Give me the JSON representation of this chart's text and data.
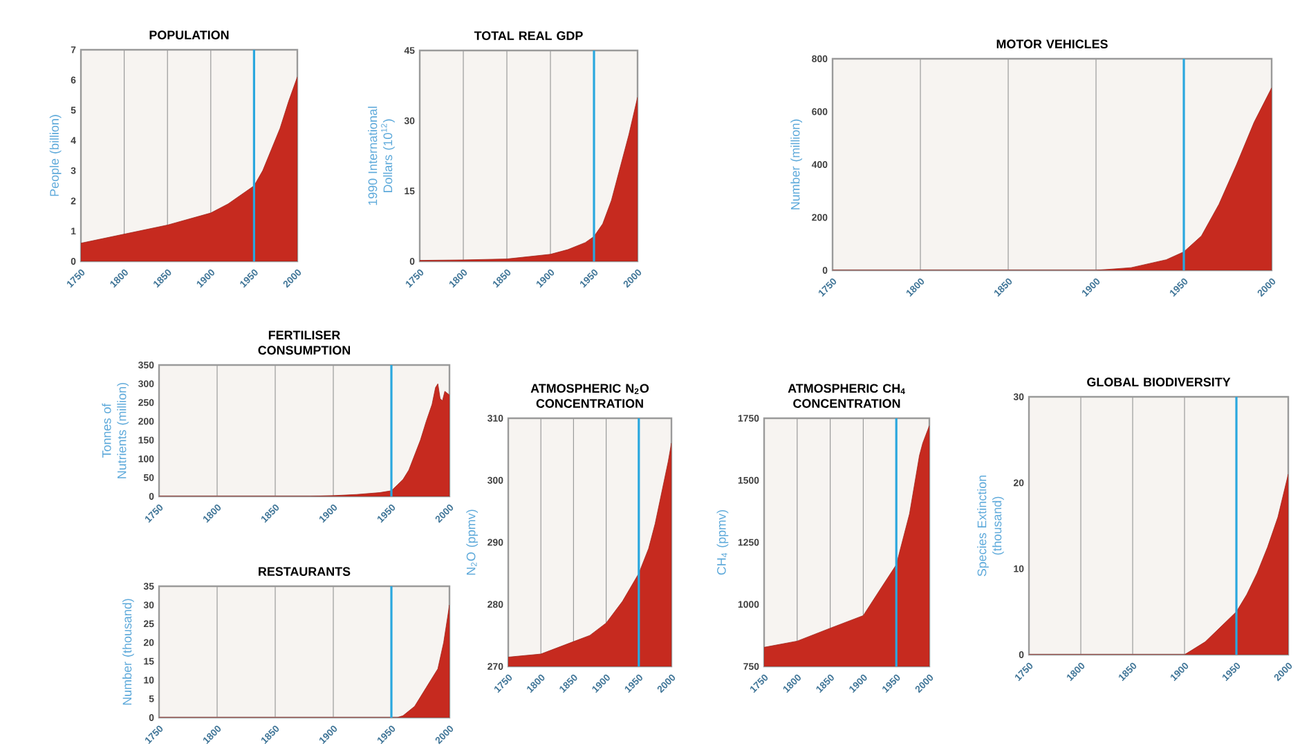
{
  "chart_data": [
    {
      "type": "area",
      "title": "POPULATION",
      "ylabel": "People (billion)",
      "color": "#c62a1f",
      "grid": "x",
      "x": [
        1750,
        1800,
        1850,
        1900,
        1920,
        1940,
        1950,
        1960,
        1970,
        1980,
        1990,
        2000
      ],
      "values": [
        0.6,
        0.9,
        1.2,
        1.6,
        1.9,
        2.3,
        2.5,
        3.0,
        3.7,
        4.4,
        5.3,
        6.1
      ],
      "xlim": [
        1750,
        2000
      ],
      "xticks": [
        1750,
        1800,
        1850,
        1900,
        1950,
        2000
      ],
      "ylim": [
        0,
        7
      ],
      "yticks": [
        0,
        1,
        2,
        3,
        4,
        5,
        6,
        7
      ],
      "ref_lines": [
        {
          "axis": "x",
          "value": 1950,
          "color": "#2aa7de"
        }
      ]
    },
    {
      "type": "area",
      "title": "TOTAL REAL GDP",
      "ylabel": "1990 International Dollars (10$^{12}$)",
      "color": "#c62a1f",
      "grid": "x",
      "x": [
        1750,
        1800,
        1850,
        1900,
        1920,
        1940,
        1950,
        1960,
        1970,
        1980,
        1990,
        2000
      ],
      "values": [
        0.2,
        0.3,
        0.5,
        1.5,
        2.5,
        4,
        5.3,
        8,
        13,
        20,
        27,
        35
      ],
      "xlim": [
        1750,
        2000
      ],
      "xticks": [
        1750,
        1800,
        1850,
        1900,
        1950,
        2000
      ],
      "ylim": [
        0,
        45
      ],
      "yticks": [
        0,
        15,
        30,
        45
      ],
      "ref_lines": [
        {
          "axis": "x",
          "value": 1950,
          "color": "#2aa7de"
        }
      ]
    },
    {
      "type": "area",
      "title": "MOTOR VEHICLES",
      "ylabel": "Number (million)",
      "color": "#c62a1f",
      "grid": "x",
      "x": [
        1750,
        1900,
        1920,
        1940,
        1950,
        1960,
        1970,
        1980,
        1990,
        2000
      ],
      "values": [
        0,
        0,
        10,
        40,
        70,
        130,
        250,
        400,
        560,
        690
      ],
      "xlim": [
        1750,
        2000
      ],
      "xticks": [
        1750,
        1800,
        1850,
        1900,
        1950,
        2000
      ],
      "ylim": [
        0,
        800
      ],
      "yticks": [
        0,
        200,
        400,
        600,
        800
      ],
      "ref_lines": [
        {
          "axis": "x",
          "value": 1950,
          "color": "#2aa7de"
        }
      ]
    },
    {
      "type": "area",
      "title": "FERTILISER CONSUMPTION",
      "ylabel": "Tonnes of Nutrients (million)",
      "color": "#c62a1f",
      "grid": "x",
      "x": [
        1750,
        1880,
        1900,
        1920,
        1940,
        1950,
        1955,
        1960,
        1965,
        1970,
        1975,
        1980,
        1985,
        1988,
        1990,
        1992,
        1994,
        1996,
        2000
      ],
      "values": [
        0,
        0,
        2,
        5,
        10,
        15,
        30,
        45,
        70,
        110,
        150,
        200,
        245,
        290,
        300,
        260,
        255,
        280,
        270
      ],
      "xlim": [
        1750,
        2000
      ],
      "xticks": [
        1750,
        1800,
        1850,
        1900,
        1950,
        2000
      ],
      "ylim": [
        0,
        350
      ],
      "yticks": [
        0,
        50,
        100,
        150,
        200,
        250,
        300,
        350
      ],
      "ref_lines": [
        {
          "axis": "x",
          "value": 1950,
          "color": "#2aa7de"
        }
      ]
    },
    {
      "type": "area",
      "title": "RESTAURANTS",
      "ylabel": "Number (thousand)",
      "color": "#c62a1f",
      "grid": "x",
      "x": [
        1750,
        1955,
        1960,
        1970,
        1980,
        1990,
        1995,
        2000
      ],
      "values": [
        0,
        0,
        0.5,
        3,
        8,
        13,
        20,
        30
      ],
      "xlim": [
        1750,
        2000
      ],
      "xticks": [
        1750,
        1800,
        1850,
        1900,
        1950,
        2000
      ],
      "ylim": [
        0,
        35
      ],
      "yticks": [
        0,
        5,
        10,
        15,
        20,
        25,
        30,
        35
      ],
      "ref_lines": [
        {
          "axis": "x",
          "value": 1950,
          "color": "#2aa7de"
        }
      ]
    },
    {
      "type": "area",
      "title": "ATMOSPHERIC N$_{2}$O CONCENTRATION",
      "ylabel": "N$_{2}$O (ppmv)",
      "color": "#c62a1f",
      "grid": "x",
      "x": [
        1750,
        1800,
        1850,
        1875,
        1900,
        1925,
        1950,
        1965,
        1975,
        1985,
        1995,
        2000
      ],
      "values": [
        271.5,
        272,
        274,
        275,
        277,
        280.5,
        285,
        289,
        293,
        298,
        303,
        306
      ],
      "xlim": [
        1750,
        2000
      ],
      "xticks": [
        1750,
        1800,
        1850,
        1900,
        1950,
        2000
      ],
      "ylim": [
        270,
        310
      ],
      "yticks": [
        270,
        280,
        290,
        300,
        310
      ],
      "ref_lines": [
        {
          "axis": "x",
          "value": 1950,
          "color": "#2aa7de"
        }
      ]
    },
    {
      "type": "area",
      "title": "ATMOSPHERIC CH$_{4}$ CONCENTRATION",
      "ylabel": "CH$_{4}$ (ppmv)",
      "color": "#c62a1f",
      "grid": "x",
      "x": [
        1750,
        1800,
        1850,
        1900,
        1925,
        1950,
        1970,
        1985,
        1990,
        2000
      ],
      "values": [
        827,
        852,
        904,
        955,
        1058,
        1160,
        1365,
        1600,
        1650,
        1720
      ],
      "xlim": [
        1750,
        2000
      ],
      "xticks": [
        1750,
        1800,
        1850,
        1900,
        1950,
        2000
      ],
      "ylim": [
        750,
        1750
      ],
      "yticks": [
        750,
        1000,
        1250,
        1500,
        1750
      ],
      "ref_lines": [
        {
          "axis": "x",
          "value": 1950,
          "color": "#2aa7de"
        }
      ]
    },
    {
      "type": "area",
      "title": "GLOBAL BIODIVERSITY",
      "ylabel": "Species Extinction (thousand)",
      "color": "#c62a1f",
      "grid": "x",
      "x": [
        1750,
        1900,
        1920,
        1950,
        1960,
        1970,
        1980,
        1990,
        2000
      ],
      "values": [
        0,
        0,
        1.5,
        5,
        7,
        9.5,
        12.5,
        16,
        21
      ],
      "xlim": [
        1750,
        2000
      ],
      "xticks": [
        1750,
        1800,
        1850,
        1900,
        1950,
        2000
      ],
      "ylim": [
        0,
        30
      ],
      "yticks": [
        0,
        10,
        20,
        30
      ],
      "ref_lines": [
        {
          "axis": "x",
          "value": 1950,
          "color": "#2aa7de"
        }
      ]
    }
  ]
}
